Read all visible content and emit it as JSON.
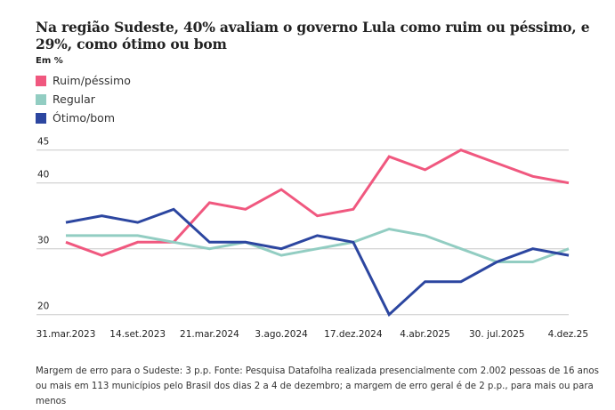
{
  "header": {
    "title": "Na região Sudeste, 40% avaliam o governo Lula como ruim ou péssimo, e 29%, como ótimo ou bom",
    "unit_label": "Em %"
  },
  "legend": [
    {
      "label": "Ruim/péssimo",
      "color": "#F0587F"
    },
    {
      "label": "Regular",
      "color": "#92CDC2"
    },
    {
      "label": "Ótimo/bom",
      "color": "#2C46A0"
    }
  ],
  "footer": {
    "note": "Margem de erro para o Sudeste: 3 p.p. Fonte: Pesquisa Datafolha realizada presencialmente com 2.002 pessoas de 16 anos ou mais em 113 municípios pelo Brasil dos dias 2 a 4 de dezembro; a margem de erro geral é de 2 p.p., para mais ou para menos"
  },
  "chart_data": {
    "type": "line",
    "title": "Na região Sudeste, 40% avaliam o governo Lula como ruim ou péssimo, e 29%, como ótimo ou bom",
    "xlabel": "",
    "ylabel": "Em %",
    "x_tick_labels": [
      "31.mar.2023",
      "",
      "14.set.2023",
      "",
      "21.mar.2024",
      "",
      "3.ago.2024",
      "",
      "17.dez.2024",
      "",
      "4.abr.2025",
      "",
      "30. jul.2025",
      "",
      "4.dez.25"
    ],
    "y_ticks": [
      20,
      30,
      40,
      45
    ],
    "ylim": [
      20,
      45
    ],
    "grid": true,
    "legend_position": "top-left",
    "series": [
      {
        "name": "Ruim/péssimo",
        "color": "#F0587F",
        "values": [
          31,
          29,
          31,
          31,
          37,
          36,
          39,
          35,
          36,
          44,
          42,
          45,
          43,
          41,
          40
        ]
      },
      {
        "name": "Regular",
        "color": "#92CDC2",
        "values": [
          32,
          32,
          32,
          31,
          30,
          31,
          29,
          30,
          31,
          33,
          32,
          30,
          28,
          28,
          30
        ]
      },
      {
        "name": "Ótimo/bom",
        "color": "#2C46A0",
        "values": [
          34,
          35,
          34,
          36,
          31,
          31,
          30,
          32,
          31,
          20,
          25,
          25,
          28,
          30,
          29
        ]
      }
    ]
  }
}
